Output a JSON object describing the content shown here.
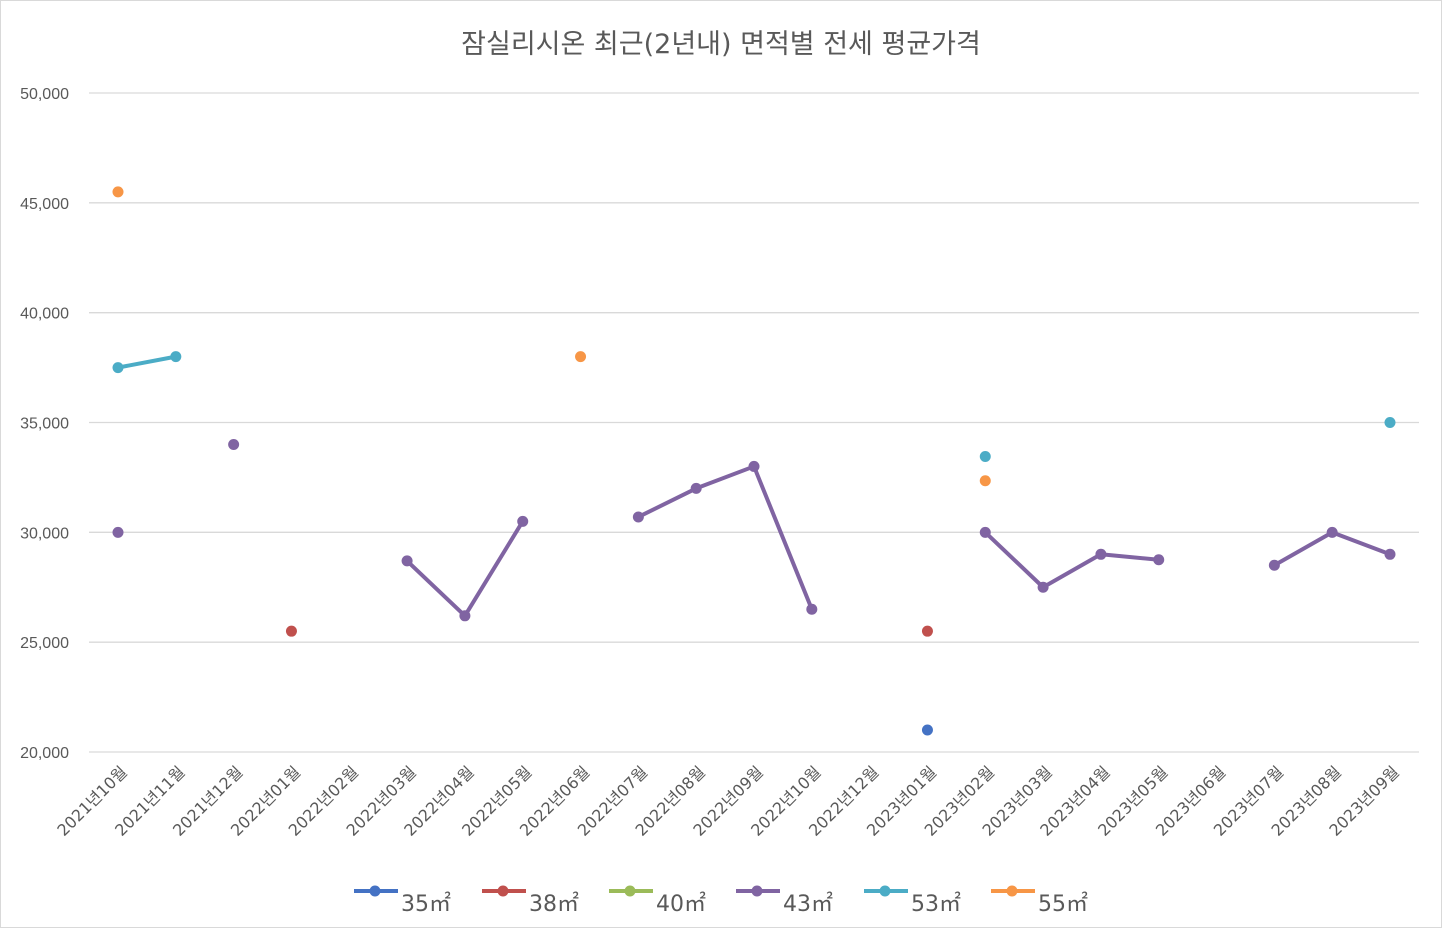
{
  "chart_data": {
    "type": "line",
    "title": "잠실리시온 최근(2년내) 면적별 전세 평균가격",
    "xlabel": "",
    "ylabel": "",
    "ylim": [
      20000,
      50000
    ],
    "yticks": [
      20000,
      25000,
      30000,
      35000,
      40000,
      45000,
      50000
    ],
    "ytick_labels": [
      "20,000",
      "25,000",
      "30,000",
      "35,000",
      "40,000",
      "45,000",
      "50,000"
    ],
    "grid": true,
    "legend_position": "bottom",
    "categories": [
      "2021년10월",
      "2021년11월",
      "2021년12월",
      "2022년01월",
      "2022년02월",
      "2022년03월",
      "2022년04월",
      "2022년05월",
      "2022년06월",
      "2022년07월",
      "2022년08월",
      "2022년09월",
      "2022년10월",
      "2022년12월",
      "2023년01월",
      "2023년02월",
      "2023년03월",
      "2023년04월",
      "2023년05월",
      "2023년06월",
      "2023년07월",
      "2023년08월",
      "2023년09월"
    ],
    "series": [
      {
        "name": "35㎡",
        "color": "#4472c4",
        "values": [
          null,
          null,
          null,
          null,
          null,
          null,
          null,
          null,
          null,
          null,
          null,
          null,
          null,
          null,
          21000,
          null,
          null,
          null,
          null,
          null,
          null,
          null,
          null
        ]
      },
      {
        "name": "38㎡",
        "color": "#c0504d",
        "values": [
          null,
          null,
          null,
          25500,
          null,
          null,
          null,
          null,
          null,
          null,
          null,
          null,
          null,
          null,
          25500,
          null,
          null,
          null,
          null,
          null,
          null,
          null,
          null
        ]
      },
      {
        "name": "40㎡",
        "color": "#9bbb59",
        "values": [
          null,
          null,
          null,
          null,
          null,
          null,
          null,
          null,
          null,
          null,
          null,
          null,
          null,
          null,
          null,
          null,
          null,
          null,
          null,
          null,
          null,
          null,
          null
        ]
      },
      {
        "name": "43㎡",
        "color": "#8064a2",
        "values": [
          30000,
          null,
          34000,
          null,
          null,
          28700,
          26200,
          30500,
          null,
          30700,
          32000,
          33000,
          26500,
          null,
          null,
          30000,
          27500,
          29000,
          28750,
          null,
          28500,
          30000,
          29000
        ]
      },
      {
        "name": "53㎡",
        "color": "#4bacc6",
        "values": [
          37500,
          38000,
          null,
          null,
          null,
          null,
          null,
          null,
          null,
          null,
          null,
          null,
          null,
          null,
          null,
          33450,
          null,
          null,
          null,
          null,
          null,
          null,
          35000
        ]
      },
      {
        "name": "55㎡",
        "color": "#f79646",
        "values": [
          45500,
          null,
          null,
          null,
          null,
          null,
          null,
          null,
          38000,
          null,
          null,
          null,
          null,
          null,
          null,
          32350,
          null,
          null,
          null,
          null,
          null,
          null,
          null
        ]
      }
    ]
  }
}
